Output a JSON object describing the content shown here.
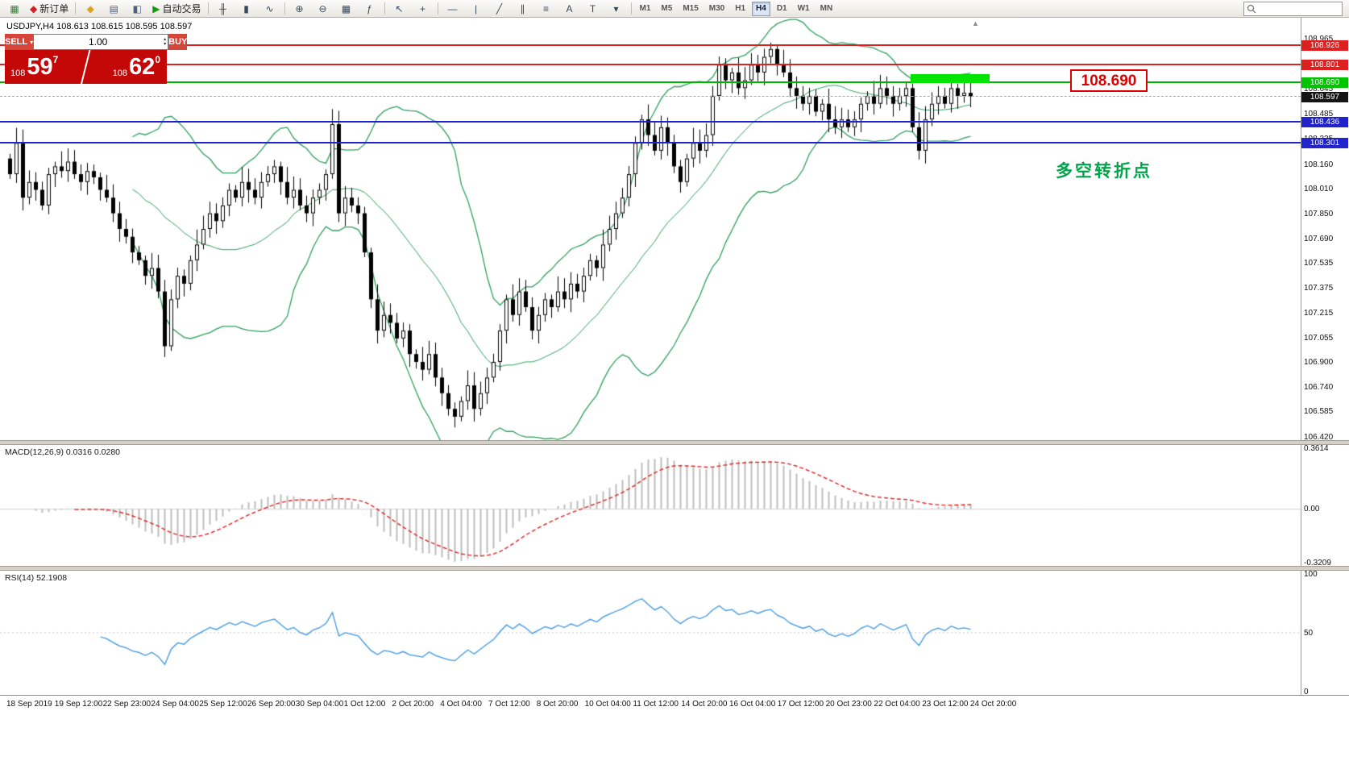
{
  "toolbar": {
    "search_placeholder": "",
    "timeframe_labels": [
      "M1",
      "M5",
      "M15",
      "M30",
      "H1",
      "H4",
      "D1",
      "W1",
      "MN"
    ],
    "active_timeframe": "H4",
    "items": [
      {
        "t": "icon",
        "name": "new-chart-icon",
        "g": "▦",
        "c": "#3f7d3f"
      },
      {
        "t": "button",
        "name": "new-order-button",
        "g": "◆",
        "c": "#cc2222",
        "label": "新订单"
      },
      {
        "t": "sep"
      },
      {
        "t": "icon",
        "name": "favorites-icon",
        "g": "◆",
        "c": "#e0a020"
      },
      {
        "t": "icon",
        "name": "market-watch-icon",
        "g": "▤",
        "c": "#50607a"
      },
      {
        "t": "icon",
        "name": "navigator-icon",
        "g": "◧",
        "c": "#50607a"
      },
      {
        "t": "button",
        "name": "autotrade-button",
        "g": "▶",
        "c": "#159915",
        "label": "自动交易"
      },
      {
        "t": "sep"
      },
      {
        "t": "icon",
        "name": "bars-chart-icon",
        "g": "╫",
        "c": "#344a5e"
      },
      {
        "t": "icon",
        "name": "candlestick-chart-icon",
        "g": "▮",
        "c": "#344a5e"
      },
      {
        "t": "icon",
        "name": "line-chart-icon",
        "g": "∿",
        "c": "#344a5e"
      },
      {
        "t": "sep"
      },
      {
        "t": "icon",
        "name": "zoom-in-icon",
        "g": "⊕",
        "c": "#344a5e"
      },
      {
        "t": "icon",
        "name": "zoom-out-icon",
        "g": "⊖",
        "c": "#344a5e"
      },
      {
        "t": "icon",
        "name": "tile-windows-icon",
        "g": "▦",
        "c": "#344a5e"
      },
      {
        "t": "icon",
        "name": "indicators-icon",
        "g": "ƒ",
        "c": "#344a5e"
      },
      {
        "t": "sep"
      },
      {
        "t": "icon",
        "name": "cursor-icon",
        "g": "↖",
        "c": "#344a5e"
      },
      {
        "t": "icon",
        "name": "crosshair-icon",
        "g": "+",
        "c": "#344a5e"
      },
      {
        "t": "sep"
      },
      {
        "t": "icon",
        "name": "horizontal-line-icon",
        "g": "—",
        "c": "#344a5e"
      },
      {
        "t": "icon",
        "name": "vertical-line-icon",
        "g": "|",
        "c": "#344a5e"
      },
      {
        "t": "icon",
        "name": "trendline-icon",
        "g": "╱",
        "c": "#344a5e"
      },
      {
        "t": "icon",
        "name": "channel-icon",
        "g": "∥",
        "c": "#344a5e"
      },
      {
        "t": "icon",
        "name": "fibonacci-icon",
        "g": "≡",
        "c": "#344a5e"
      },
      {
        "t": "icon",
        "name": "text-icon",
        "g": "A",
        "c": "#344a5e"
      },
      {
        "t": "icon",
        "name": "label-icon",
        "g": "T",
        "c": "#344a5e"
      },
      {
        "t": "icon",
        "name": "shapes-icon",
        "g": "▾",
        "c": "#344a5e"
      },
      {
        "t": "sep"
      }
    ]
  },
  "trade_panel": {
    "sell_label": "SELL",
    "buy_label": "BUY",
    "volume": "1.00",
    "caret_glyph": "▾",
    "spin_up_glyph": "▴",
    "spin_down_glyph": "▾",
    "sell_price_prefix": "108",
    "sell_price_big": "59",
    "sell_price_sup": "7",
    "buy_price_prefix": "108",
    "buy_price_big": "62",
    "buy_price_sup": "0"
  },
  "chart": {
    "symbol_line": "USDJPY,H4  108.613 108.615 108.595 108.597",
    "annotation": "多空转折点",
    "price_label_box": "108.690",
    "autoscroll_glyph": "▲",
    "highlight_bar_color": "#00e400",
    "price_ticks": [
      108.965,
      108.805,
      108.645,
      108.485,
      108.325,
      108.16,
      108.01,
      107.85,
      107.69,
      107.535,
      107.375,
      107.215,
      107.055,
      106.9,
      106.74,
      106.585,
      106.42
    ],
    "tags": [
      {
        "price": 108.926,
        "text": "108.926",
        "bg": "#dd2020"
      },
      {
        "price": 108.801,
        "text": "108.801",
        "bg": "#dd2020"
      },
      {
        "price": 108.69,
        "text": "108.690",
        "bg": "#00c400"
      },
      {
        "price": 108.597,
        "text": "108.597",
        "bg": "#141414"
      },
      {
        "price": 108.436,
        "text": "108.436",
        "bg": "#2323cc"
      },
      {
        "price": 108.301,
        "text": "108.301",
        "bg": "#2323cc"
      }
    ],
    "levels": [
      {
        "price": 108.926,
        "color": "#dd2222",
        "width": 2,
        "dash": false
      },
      {
        "price": 108.801,
        "color": "#dd2222",
        "width": 2,
        "dash": false
      },
      {
        "price": 108.69,
        "color": "#00b400",
        "width": 2,
        "dash": false
      },
      {
        "price": 108.597,
        "color": "#aaaaaa",
        "width": 1,
        "dash": true
      },
      {
        "price": 108.436,
        "color": "#2323cc",
        "width": 2,
        "dash": false
      },
      {
        "price": 108.301,
        "color": "#2323cc",
        "width": 2,
        "dash": false
      }
    ]
  },
  "macd": {
    "label": "MACD(12,26,9) 0.0316 0.0280",
    "ticks": [
      "0.3614",
      "0.00",
      "-0.3209"
    ]
  },
  "rsi": {
    "label": "RSI(14) 52.1908",
    "ticks": [
      "100",
      "50",
      "0"
    ]
  },
  "time_labels": [
    "18 Sep 2019",
    "19 Sep 12:00",
    "22 Sep 23:00",
    "24 Sep 04:00",
    "25 Sep 12:00",
    "26 Sep 20:00",
    "30 Sep 04:00",
    "1 Oct 12:00",
    "2 Oct 20:00",
    "4 Oct 04:00",
    "7 Oct 12:00",
    "8 Oct 20:00",
    "10 Oct 04:00",
    "11 Oct 12:00",
    "14 Oct 20:00",
    "16 Oct 04:00",
    "17 Oct 12:00",
    "20 Oct 23:00",
    "22 Oct 04:00",
    "23 Oct 12:00",
    "24 Oct 20:00"
  ],
  "chart_data": {
    "type": "candlestick",
    "symbol": "USDJPY",
    "timeframe": "H4",
    "current_bar": {
      "open": 108.613,
      "high": 108.615,
      "low": 108.595,
      "close": 108.597
    },
    "ylim": [
      106.4,
      109.1
    ],
    "first_open": 108.2,
    "closes": [
      108.1,
      108.3,
      107.95,
      108.05,
      108.0,
      107.9,
      108.1,
      108.15,
      108.12,
      108.18,
      108.1,
      108.05,
      108.12,
      108.08,
      108.0,
      107.95,
      107.85,
      107.75,
      107.7,
      107.6,
      107.55,
      107.45,
      107.5,
      107.35,
      107.0,
      107.3,
      107.45,
      107.4,
      107.55,
      107.65,
      107.75,
      107.85,
      107.8,
      107.9,
      108.0,
      107.95,
      108.05,
      108.0,
      107.95,
      108.05,
      108.1,
      108.15,
      108.05,
      107.95,
      108.0,
      107.9,
      107.85,
      107.95,
      108.0,
      108.1,
      108.42,
      107.85,
      107.95,
      107.9,
      107.85,
      107.6,
      107.3,
      107.1,
      107.2,
      107.15,
      107.05,
      107.1,
      106.95,
      106.9,
      106.85,
      106.95,
      106.8,
      106.7,
      106.6,
      106.55,
      106.65,
      106.75,
      106.6,
      106.7,
      106.8,
      106.9,
      107.1,
      107.3,
      107.2,
      107.35,
      107.25,
      107.1,
      107.2,
      107.3,
      107.25,
      107.35,
      107.3,
      107.4,
      107.35,
      107.45,
      107.55,
      107.5,
      107.65,
      107.75,
      107.85,
      107.95,
      108.1,
      108.3,
      108.45,
      108.35,
      108.25,
      108.4,
      108.3,
      108.15,
      108.05,
      108.2,
      108.3,
      108.25,
      108.35,
      108.6,
      108.8,
      108.7,
      108.75,
      108.65,
      108.7,
      108.8,
      108.75,
      108.85,
      108.9,
      108.8,
      108.75,
      108.65,
      108.6,
      108.55,
      108.6,
      108.5,
      108.55,
      108.45,
      108.4,
      108.45,
      108.4,
      108.45,
      108.55,
      108.6,
      108.55,
      108.65,
      108.6,
      108.55,
      108.6,
      108.65,
      108.4,
      108.25,
      108.45,
      108.55,
      108.6,
      108.55,
      108.65,
      108.6,
      108.62,
      108.597
    ],
    "overlays": {
      "bollinger": {
        "period": 20,
        "deviation": 2
      }
    },
    "subcharts": [
      {
        "type": "macd",
        "label": "MACD(12,26,9) 0.0316 0.0280",
        "params": [
          12,
          26,
          9
        ],
        "ylim": [
          -0.3209,
          0.3614
        ]
      },
      {
        "type": "rsi",
        "label": "RSI(14) 52.1908",
        "params": [
          14
        ],
        "ylim": [
          0,
          100
        ]
      }
    ],
    "style": {
      "band_color": "#2e9e5e",
      "up_color": "#ffffff",
      "down_color": "#000000",
      "macd_bar_color": "#bdbdbd",
      "macd_signal_color": "#e02020",
      "rsi_color": "#3c96e0"
    }
  }
}
